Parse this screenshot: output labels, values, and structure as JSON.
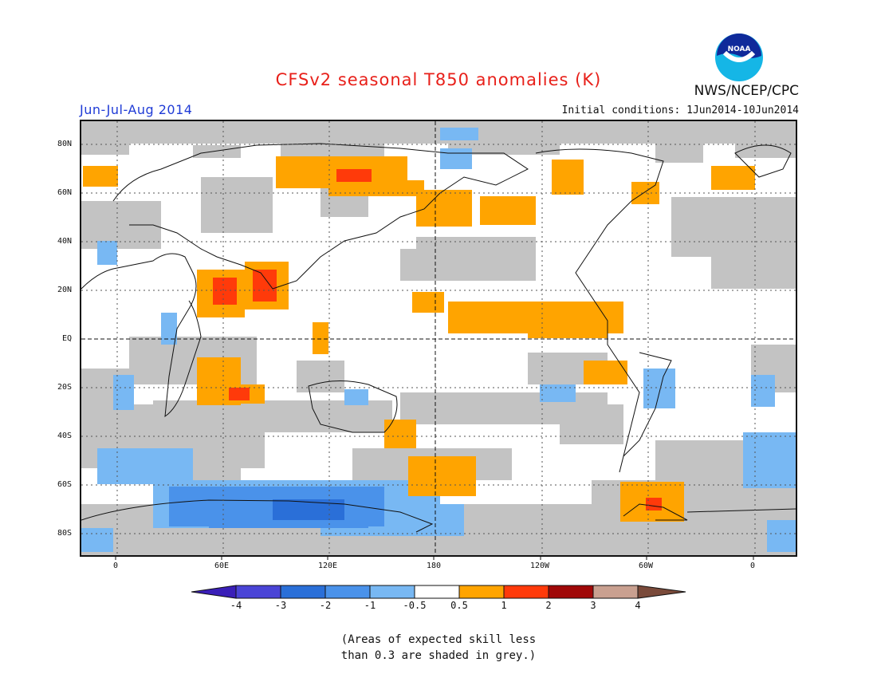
{
  "title": "CFSv2 seasonal T850 anomalies (K)",
  "period": "Jun-Jul-Aug 2014",
  "initial_conditions": "Initial conditions: 1Jun2014-10Jun2014",
  "agency": "NWS/NCEP/CPC",
  "logo_text": "NOAA",
  "lat_labels": [
    "80N",
    "60N",
    "40N",
    "20N",
    "EQ",
    "20S",
    "40S",
    "60S",
    "80S"
  ],
  "lon_labels": [
    "0",
    "60E",
    "120E",
    "180",
    "120W",
    "60W",
    "0"
  ],
  "colorbar": {
    "labels": [
      "-4",
      "-3",
      "-2",
      "-1",
      "-0.5",
      "0.5",
      "1",
      "2",
      "3",
      "4"
    ],
    "colors": [
      "#3a1fb8",
      "#4a44d6",
      "#2a6fd8",
      "#4a92ea",
      "#78b8f3",
      "#ffffff",
      "#ffa400",
      "#ff3a0a",
      "#a00808",
      "#c9a090",
      "#7a4a3a"
    ]
  },
  "note_lines": [
    "(Areas of expected skill less",
    "than 0.3 are shaded in grey.)"
  ]
}
